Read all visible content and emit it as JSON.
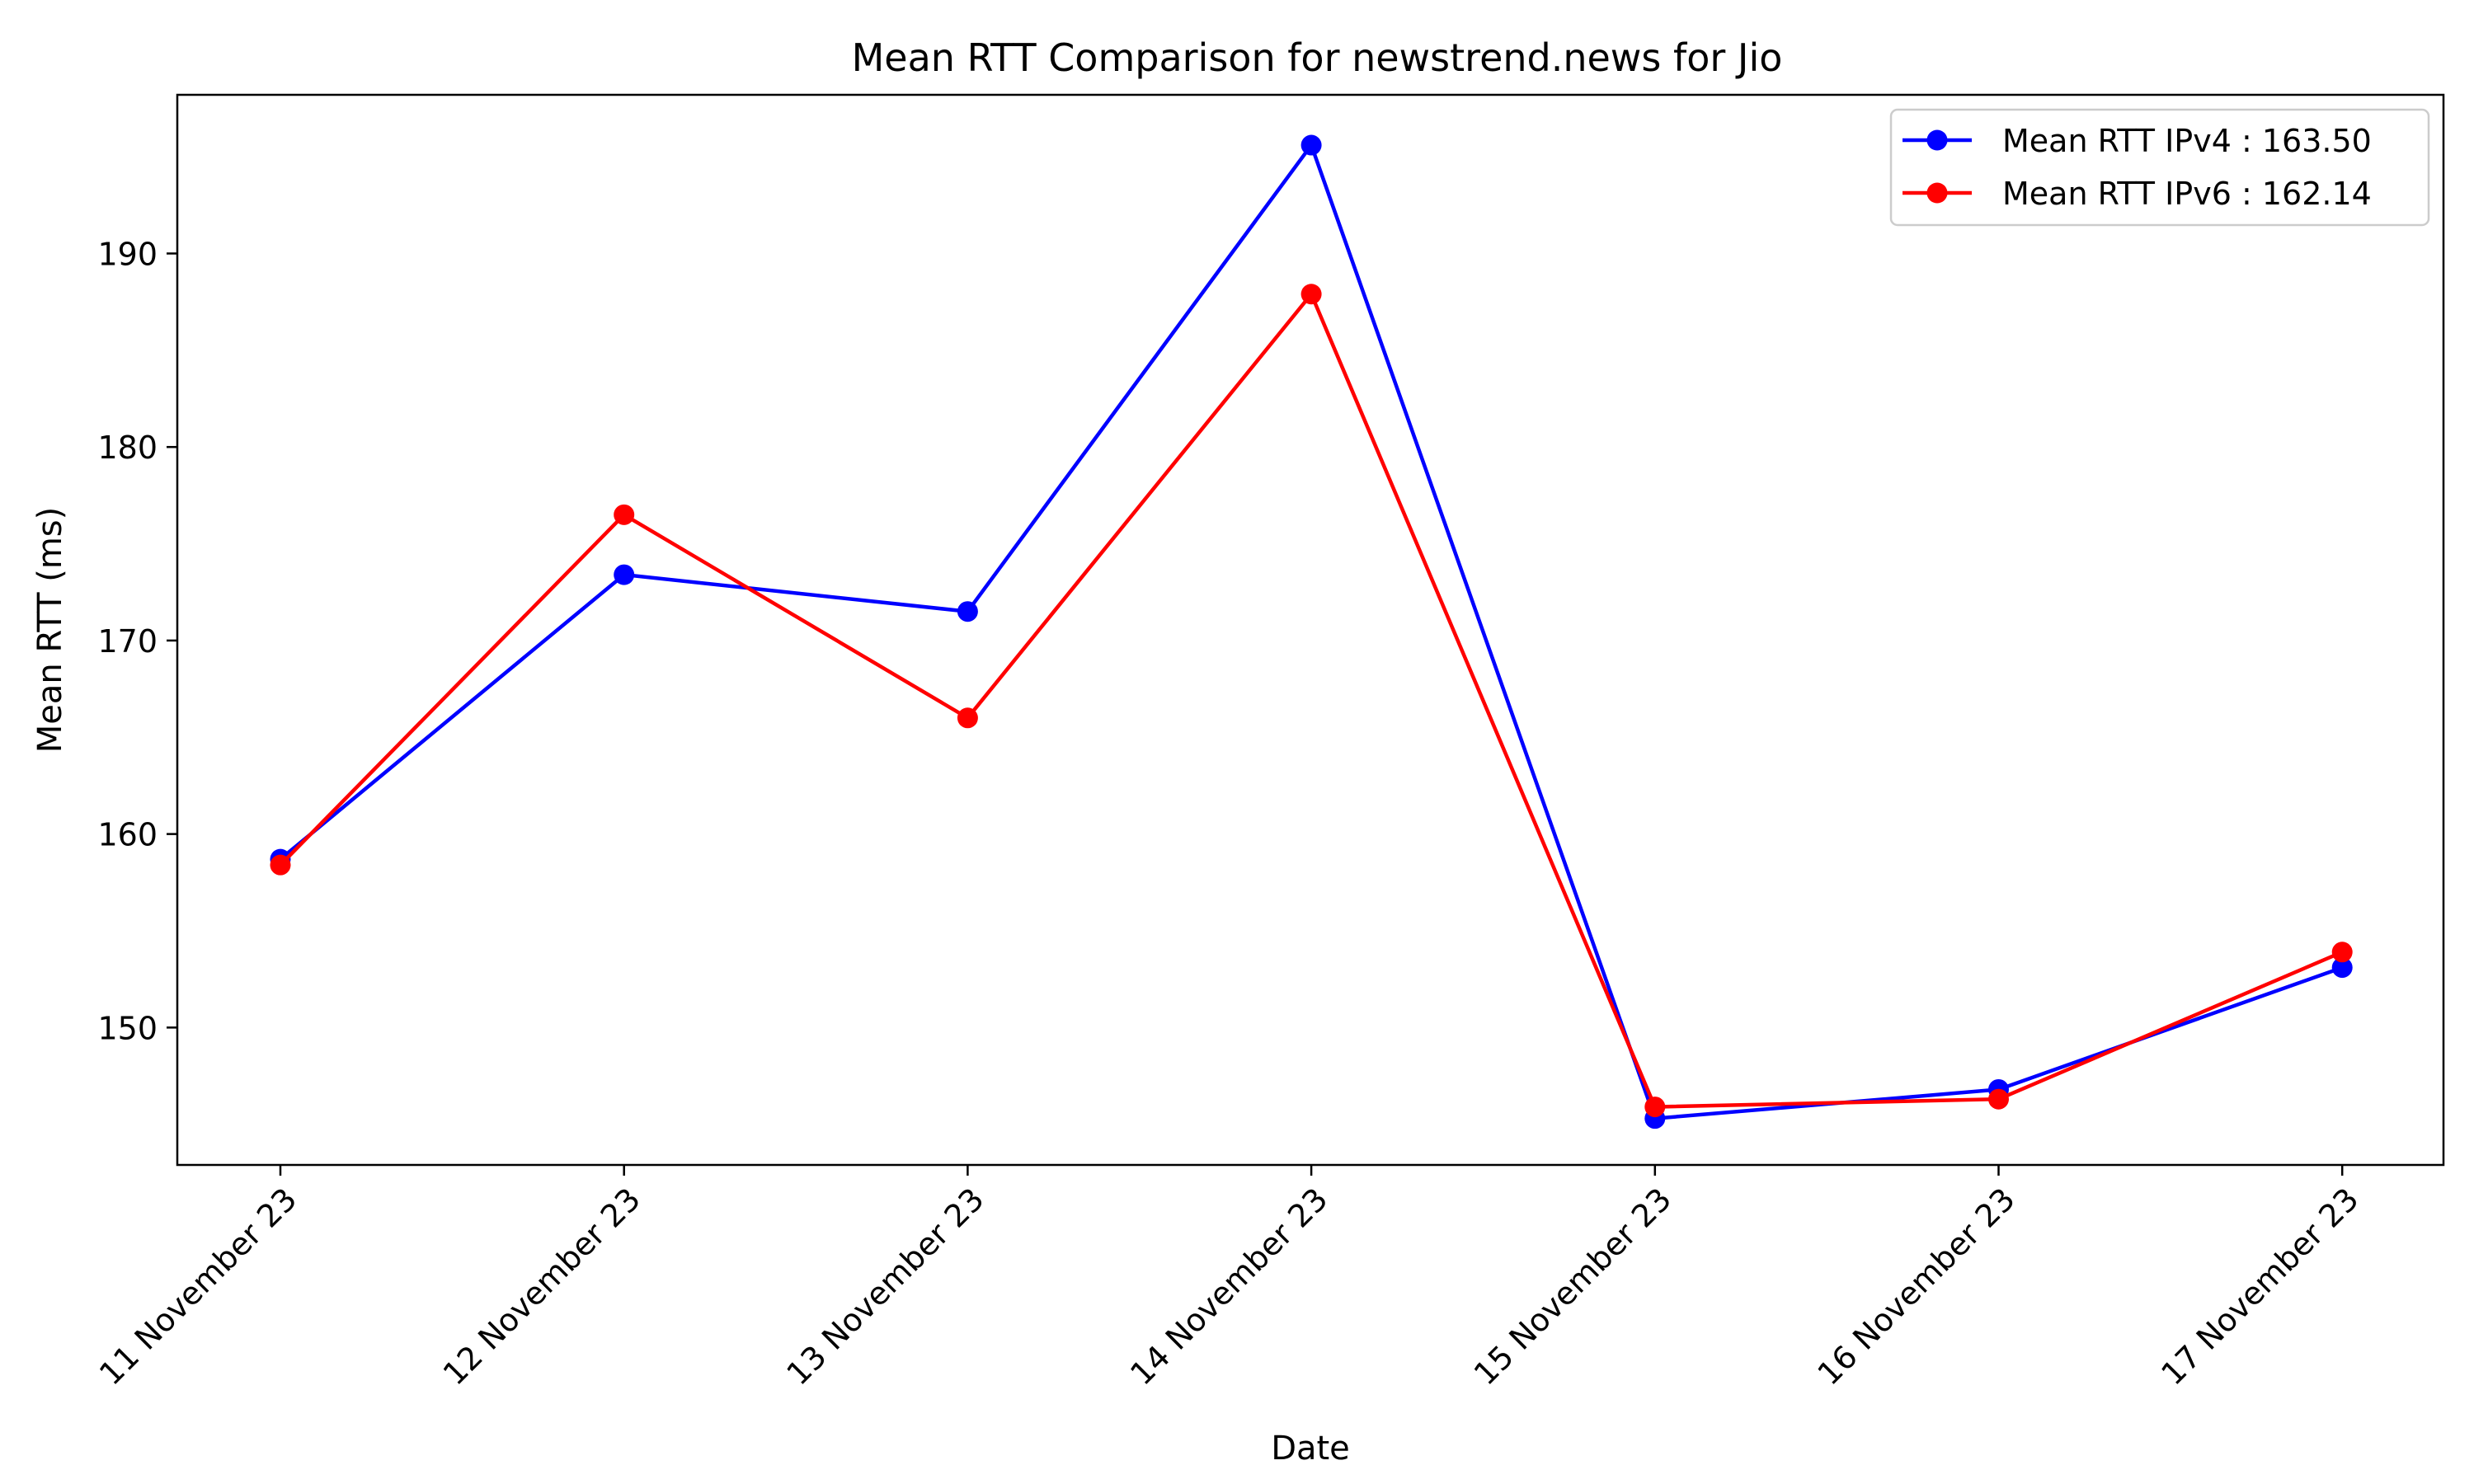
{
  "chart_data": {
    "type": "line",
    "title": "Mean RTT Comparison for newstrend.news for Jio",
    "xlabel": "Date",
    "ylabel": "Mean RTT (ms)",
    "categories": [
      "11 November 23",
      "12 November 23",
      "13 November 23",
      "14 November 23",
      "15 November 23",
      "16 November 23",
      "17 November 23"
    ],
    "ylim": [
      142.9,
      198.2
    ],
    "yticks": [
      150,
      160,
      170,
      180,
      190
    ],
    "grid": false,
    "legend_position": "upper right",
    "series": [
      {
        "name": "Mean RTT IPv4 : 163.50",
        "color": "#0000ff",
        "marker": "circle",
        "values": [
          158.7,
          173.4,
          171.5,
          195.6,
          145.3,
          146.8,
          153.1
        ]
      },
      {
        "name": "Mean RTT IPv6 : 162.14",
        "color": "#ff0000",
        "marker": "circle",
        "values": [
          158.4,
          176.5,
          166.0,
          187.9,
          145.9,
          146.3,
          153.9
        ]
      }
    ]
  }
}
